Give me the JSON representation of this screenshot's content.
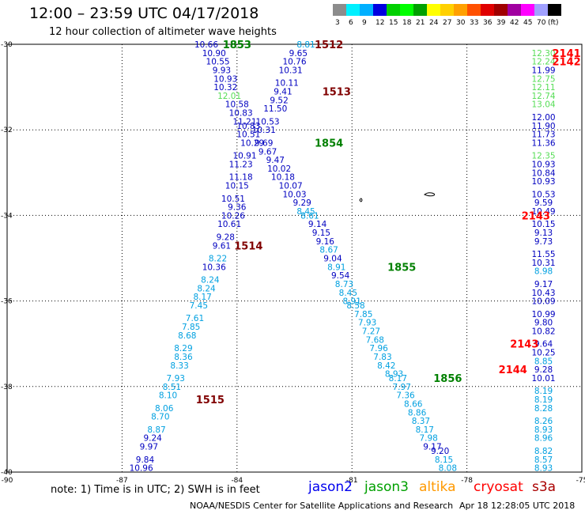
{
  "title": "12:00  –  23:59 UTC 04/17/2018",
  "subtitle": "12 hour collection of altimeter wave heights",
  "scale": {
    "colors": [
      "#8c8c8c",
      "#00f0ff",
      "#00b0ff",
      "#0000e0",
      "#00d000",
      "#00ff00",
      "#00a000",
      "#ffff00",
      "#ffd000",
      "#ffa000",
      "#ff5000",
      "#e00000",
      "#a00000",
      "#a000a0",
      "#ff00ff",
      "#a0a0ff",
      "#000000"
    ],
    "labels": [
      "3",
      "6",
      "9",
      "12",
      "15",
      "18",
      "21",
      "24",
      "27",
      "30",
      "33",
      "36",
      "39",
      "42",
      "45",
      "70",
      "(ft)"
    ]
  },
  "y_ticks": [
    "-30",
    "-32",
    "-34",
    "-36",
    "-38",
    "-40"
  ],
  "x_ticks": [
    "-90",
    "-87",
    "-84",
    "-81",
    "-78",
    "-75"
  ],
  "note": "note:  1) Time is in UTC;  2) SWH is in feet",
  "legend": [
    {
      "name": "jason2",
      "color": "#0000ee"
    },
    {
      "name": "jason3",
      "color": "#00a000"
    },
    {
      "name": "altika",
      "color": "#ff9900"
    },
    {
      "name": "cryosat",
      "color": "#ff0000"
    },
    {
      "name": "s3a",
      "color": "#aa0000"
    }
  ],
  "credit": "NOAA/NESDIS Center for Satellite Applications and Research",
  "timestamp": "Apr 18 12:28:05 UTC 2018",
  "colors": {
    "c6": "#00a0e0",
    "c9": "#0000c0",
    "c12": "#55dd55",
    "time_dark": "#800000",
    "time_green": "#008000",
    "time_red": "#ff0000"
  },
  "tracks": [
    {
      "time": "1853",
      "color": "time_green",
      "lon": -84.0,
      "lat": -30.0
    },
    {
      "time": "1512",
      "color": "time_dark",
      "lon": -81.6,
      "lat": -30.0
    },
    {
      "time": "1513",
      "color": "time_dark",
      "lon": -81.4,
      "lat": -31.1
    },
    {
      "time": "1854",
      "color": "time_green",
      "lon": -81.6,
      "lat": -32.3
    },
    {
      "time": "1514",
      "color": "time_dark",
      "lon": -83.7,
      "lat": -34.7
    },
    {
      "time": "1855",
      "color": "time_green",
      "lon": -79.7,
      "lat": -35.2
    },
    {
      "time": "1856",
      "color": "time_green",
      "lon": -78.5,
      "lat": -37.8
    },
    {
      "time": "1515",
      "color": "time_dark",
      "lon": -84.7,
      "lat": -38.3
    },
    {
      "time": "2141",
      "color": "time_red",
      "lon": -75.4,
      "lat": -30.2
    },
    {
      "time": "2142",
      "color": "time_red",
      "lon": -75.4,
      "lat": -30.4
    },
    {
      "time": "2143",
      "color": "time_red",
      "lon": -76.2,
      "lat": -34.0
    },
    {
      "time": "2143",
      "color": "time_red",
      "lon": -76.5,
      "lat": -37.0
    },
    {
      "time": "2144",
      "color": "time_red",
      "lon": -76.8,
      "lat": -37.6
    }
  ],
  "observations": [
    {
      "v": "10.66",
      "c": "c9",
      "lon": -84.8,
      "lat": -30.0
    },
    {
      "v": "10.90",
      "c": "c9",
      "lon": -84.6,
      "lat": -30.2
    },
    {
      "v": "10.55",
      "c": "c9",
      "lon": -84.5,
      "lat": -30.4
    },
    {
      "v": "9.93",
      "c": "c9",
      "lon": -84.4,
      "lat": -30.6
    },
    {
      "v": "10.93",
      "c": "c9",
      "lon": -84.3,
      "lat": -30.8
    },
    {
      "v": "10.32",
      "c": "c9",
      "lon": -84.3,
      "lat": -31.0
    },
    {
      "v": "12.01",
      "c": "c12",
      "lon": -84.2,
      "lat": -31.2
    },
    {
      "v": "10.58",
      "c": "c9",
      "lon": -84.0,
      "lat": -31.4
    },
    {
      "v": "10.83",
      "c": "c9",
      "lon": -83.9,
      "lat": -31.6
    },
    {
      "v": "11.21",
      "c": "c9",
      "lon": -83.8,
      "lat": -31.8
    },
    {
      "v": "10.83",
      "c": "c9",
      "lon": -83.7,
      "lat": -31.9
    },
    {
      "v": "10.51",
      "c": "c9",
      "lon": -83.7,
      "lat": -32.1
    },
    {
      "v": "10.29",
      "c": "c9",
      "lon": -83.6,
      "lat": -32.3
    },
    {
      "v": "10.91",
      "c": "c9",
      "lon": -83.8,
      "lat": -32.6
    },
    {
      "v": "11.23",
      "c": "c9",
      "lon": -83.9,
      "lat": -32.8
    },
    {
      "v": "11.18",
      "c": "c9",
      "lon": -83.9,
      "lat": -33.1
    },
    {
      "v": "10.15",
      "c": "c9",
      "lon": -84.0,
      "lat": -33.3
    },
    {
      "v": "10.51",
      "c": "c9",
      "lon": -84.1,
      "lat": -33.6
    },
    {
      "v": "9.36",
      "c": "c9",
      "lon": -84.0,
      "lat": -33.8
    },
    {
      "v": "10.26",
      "c": "c9",
      "lon": -84.1,
      "lat": -34.0
    },
    {
      "v": "10.61",
      "c": "c9",
      "lon": -84.2,
      "lat": -34.2
    },
    {
      "v": "9.28",
      "c": "c9",
      "lon": -84.3,
      "lat": -34.5
    },
    {
      "v": "9.61",
      "c": "c9",
      "lon": -84.4,
      "lat": -34.7
    },
    {
      "v": "8.22",
      "c": "c6",
      "lon": -84.5,
      "lat": -35.0
    },
    {
      "v": "10.36",
      "c": "c9",
      "lon": -84.6,
      "lat": -35.2
    },
    {
      "v": "8.24",
      "c": "c6",
      "lon": -84.7,
      "lat": -35.5
    },
    {
      "v": "8.24",
      "c": "c6",
      "lon": -84.8,
      "lat": -35.7
    },
    {
      "v": "8.17",
      "c": "c6",
      "lon": -84.9,
      "lat": -35.9
    },
    {
      "v": "7.45",
      "c": "c6",
      "lon": -85.0,
      "lat": -36.1
    },
    {
      "v": "7.61",
      "c": "c6",
      "lon": -85.1,
      "lat": -36.4
    },
    {
      "v": "7.85",
      "c": "c6",
      "lon": -85.2,
      "lat": -36.6
    },
    {
      "v": "8.68",
      "c": "c6",
      "lon": -85.3,
      "lat": -36.8
    },
    {
      "v": "8.29",
      "c": "c6",
      "lon": -85.4,
      "lat": -37.1
    },
    {
      "v": "8.36",
      "c": "c6",
      "lon": -85.4,
      "lat": -37.3
    },
    {
      "v": "8.33",
      "c": "c6",
      "lon": -85.5,
      "lat": -37.5
    },
    {
      "v": "7.93",
      "c": "c6",
      "lon": -85.6,
      "lat": -37.8
    },
    {
      "v": "8.51",
      "c": "c6",
      "lon": -85.7,
      "lat": -38.0
    },
    {
      "v": "8.10",
      "c": "c6",
      "lon": -85.8,
      "lat": -38.2
    },
    {
      "v": "8.06",
      "c": "c6",
      "lon": -85.9,
      "lat": -38.5
    },
    {
      "v": "8.70",
      "c": "c6",
      "lon": -86.0,
      "lat": -38.7
    },
    {
      "v": "8.87",
      "c": "c6",
      "lon": -86.1,
      "lat": -39.0
    },
    {
      "v": "9.24",
      "c": "c9",
      "lon": -86.2,
      "lat": -39.2
    },
    {
      "v": "9.97",
      "c": "c9",
      "lon": -86.3,
      "lat": -39.4
    },
    {
      "v": "9.84",
      "c": "c9",
      "lon": -86.4,
      "lat": -39.7
    },
    {
      "v": "10.96",
      "c": "c9",
      "lon": -86.5,
      "lat": -39.9
    },
    {
      "v": "8.81",
      "c": "c6",
      "lon": -82.2,
      "lat": -30.0
    },
    {
      "v": "9.65",
      "c": "c9",
      "lon": -82.4,
      "lat": -30.2
    },
    {
      "v": "10.76",
      "c": "c9",
      "lon": -82.5,
      "lat": -30.4
    },
    {
      "v": "10.31",
      "c": "c9",
      "lon": -82.6,
      "lat": -30.6
    },
    {
      "v": "10.11",
      "c": "c9",
      "lon": -82.7,
      "lat": -30.9
    },
    {
      "v": "9.41",
      "c": "c9",
      "lon": -82.8,
      "lat": -31.1
    },
    {
      "v": "9.52",
      "c": "c9",
      "lon": -82.9,
      "lat": -31.3
    },
    {
      "v": "11.50",
      "c": "c9",
      "lon": -83.0,
      "lat": -31.5
    },
    {
      "v": "10.53",
      "c": "c9",
      "lon": -83.2,
      "lat": -31.8
    },
    {
      "v": "10.31",
      "c": "c9",
      "lon": -83.3,
      "lat": -32.0
    },
    {
      "v": "9.69",
      "c": "c9",
      "lon": -83.3,
      "lat": -32.3
    },
    {
      "v": "9.67",
      "c": "c9",
      "lon": -83.2,
      "lat": -32.5
    },
    {
      "v": "9.47",
      "c": "c9",
      "lon": -83.0,
      "lat": -32.7
    },
    {
      "v": "10.02",
      "c": "c9",
      "lon": -82.9,
      "lat": -32.9
    },
    {
      "v": "10.18",
      "c": "c9",
      "lon": -82.8,
      "lat": -33.1
    },
    {
      "v": "10.07",
      "c": "c9",
      "lon": -82.6,
      "lat": -33.3
    },
    {
      "v": "10.03",
      "c": "c9",
      "lon": -82.5,
      "lat": -33.5
    },
    {
      "v": "9.29",
      "c": "c9",
      "lon": -82.3,
      "lat": -33.7
    },
    {
      "v": "8.45",
      "c": "c6",
      "lon": -82.2,
      "lat": -33.9
    },
    {
      "v": "8.61",
      "c": "c6",
      "lon": -82.1,
      "lat": -34.0
    },
    {
      "v": "9.14",
      "c": "c9",
      "lon": -81.9,
      "lat": -34.2
    },
    {
      "v": "9.15",
      "c": "c9",
      "lon": -81.8,
      "lat": -34.4
    },
    {
      "v": "9.16",
      "c": "c9",
      "lon": -81.7,
      "lat": -34.6
    },
    {
      "v": "8.67",
      "c": "c6",
      "lon": -81.6,
      "lat": -34.8
    },
    {
      "v": "9.04",
      "c": "c9",
      "lon": -81.5,
      "lat": -35.0
    },
    {
      "v": "8.91",
      "c": "c6",
      "lon": -81.4,
      "lat": -35.2
    },
    {
      "v": "9.54",
      "c": "c9",
      "lon": -81.3,
      "lat": -35.4
    },
    {
      "v": "8.73",
      "c": "c6",
      "lon": -81.2,
      "lat": -35.6
    },
    {
      "v": "8.45",
      "c": "c6",
      "lon": -81.1,
      "lat": -35.8
    },
    {
      "v": "8.91",
      "c": "c6",
      "lon": -81.0,
      "lat": -36.0
    },
    {
      "v": "8.58",
      "c": "c6",
      "lon": -80.9,
      "lat": -36.1
    },
    {
      "v": "7.85",
      "c": "c6",
      "lon": -80.7,
      "lat": -36.3
    },
    {
      "v": "7.93",
      "c": "c6",
      "lon": -80.6,
      "lat": -36.5
    },
    {
      "v": "7.27",
      "c": "c6",
      "lon": -80.5,
      "lat": -36.7
    },
    {
      "v": "7.68",
      "c": "c6",
      "lon": -80.4,
      "lat": -36.9
    },
    {
      "v": "7.96",
      "c": "c6",
      "lon": -80.3,
      "lat": -37.1
    },
    {
      "v": "7.83",
      "c": "c6",
      "lon": -80.2,
      "lat": -37.3
    },
    {
      "v": "8.42",
      "c": "c6",
      "lon": -80.1,
      "lat": -37.5
    },
    {
      "v": "8.93",
      "c": "c6",
      "lon": -79.9,
      "lat": -37.7
    },
    {
      "v": "8.17",
      "c": "c6",
      "lon": -79.8,
      "lat": -37.8
    },
    {
      "v": "7.97",
      "c": "c6",
      "lon": -79.7,
      "lat": -38.0
    },
    {
      "v": "7.36",
      "c": "c6",
      "lon": -79.6,
      "lat": -38.2
    },
    {
      "v": "8.66",
      "c": "c6",
      "lon": -79.4,
      "lat": -38.4
    },
    {
      "v": "8.86",
      "c": "c6",
      "lon": -79.3,
      "lat": -38.6
    },
    {
      "v": "8.37",
      "c": "c6",
      "lon": -79.2,
      "lat": -38.8
    },
    {
      "v": "8.17",
      "c": "c6",
      "lon": -79.1,
      "lat": -39.0
    },
    {
      "v": "7.98",
      "c": "c6",
      "lon": -79.0,
      "lat": -39.2
    },
    {
      "v": "9.17",
      "c": "c9",
      "lon": -78.9,
      "lat": -39.4
    },
    {
      "v": "9.20",
      "c": "c9",
      "lon": -78.7,
      "lat": -39.5
    },
    {
      "v": "8.15",
      "c": "c6",
      "lon": -78.6,
      "lat": -39.7
    },
    {
      "v": "8.08",
      "c": "c6",
      "lon": -78.5,
      "lat": -39.9
    },
    {
      "v": "12.30",
      "c": "c12",
      "lon": -76.0,
      "lat": -30.2
    },
    {
      "v": "12.24",
      "c": "c12",
      "lon": -76.0,
      "lat": -30.4
    },
    {
      "v": "11.99",
      "c": "c9",
      "lon": -76.0,
      "lat": -30.6
    },
    {
      "v": "12.75",
      "c": "c12",
      "lon": -76.0,
      "lat": -30.8
    },
    {
      "v": "12.11",
      "c": "c12",
      "lon": -76.0,
      "lat": -31.0
    },
    {
      "v": "12.74",
      "c": "c12",
      "lon": -76.0,
      "lat": -31.2
    },
    {
      "v": "13.04",
      "c": "c12",
      "lon": -76.0,
      "lat": -31.4
    },
    {
      "v": "12.00",
      "c": "c9",
      "lon": -76.0,
      "lat": -31.7
    },
    {
      "v": "11.90",
      "c": "c9",
      "lon": -76.0,
      "lat": -31.9
    },
    {
      "v": "11.73",
      "c": "c9",
      "lon": -76.0,
      "lat": -32.1
    },
    {
      "v": "11.36",
      "c": "c9",
      "lon": -76.0,
      "lat": -32.3
    },
    {
      "v": "12.35",
      "c": "c12",
      "lon": -76.0,
      "lat": -32.6
    },
    {
      "v": "10.93",
      "c": "c9",
      "lon": -76.0,
      "lat": -32.8
    },
    {
      "v": "10.84",
      "c": "c9",
      "lon": -76.0,
      "lat": -33.0
    },
    {
      "v": "10.93",
      "c": "c9",
      "lon": -76.0,
      "lat": -33.2
    },
    {
      "v": "10.53",
      "c": "c9",
      "lon": -76.0,
      "lat": -33.5
    },
    {
      "v": "9.59",
      "c": "c9",
      "lon": -76.0,
      "lat": -33.7
    },
    {
      "v": "10.49",
      "c": "c9",
      "lon": -76.0,
      "lat": -33.9
    },
    {
      "v": "10.15",
      "c": "c9",
      "lon": -76.0,
      "lat": -34.2
    },
    {
      "v": "9.13",
      "c": "c9",
      "lon": -76.0,
      "lat": -34.4
    },
    {
      "v": "9.73",
      "c": "c9",
      "lon": -76.0,
      "lat": -34.6
    },
    {
      "v": "11.55",
      "c": "c9",
      "lon": -76.0,
      "lat": -34.9
    },
    {
      "v": "10.31",
      "c": "c9",
      "lon": -76.0,
      "lat": -35.1
    },
    {
      "v": "8.98",
      "c": "c6",
      "lon": -76.0,
      "lat": -35.3
    },
    {
      "v": "9.17",
      "c": "c9",
      "lon": -76.0,
      "lat": -35.6
    },
    {
      "v": "10.43",
      "c": "c9",
      "lon": -76.0,
      "lat": -35.8
    },
    {
      "v": "10.09",
      "c": "c9",
      "lon": -76.0,
      "lat": -36.0
    },
    {
      "v": "10.99",
      "c": "c9",
      "lon": -76.0,
      "lat": -36.3
    },
    {
      "v": "9.80",
      "c": "c9",
      "lon": -76.0,
      "lat": -36.5
    },
    {
      "v": "10.82",
      "c": "c9",
      "lon": -76.0,
      "lat": -36.7
    },
    {
      "v": "9.64",
      "c": "c9",
      "lon": -76.0,
      "lat": -37.0
    },
    {
      "v": "10.25",
      "c": "c9",
      "lon": -76.0,
      "lat": -37.2
    },
    {
      "v": "8.85",
      "c": "c6",
      "lon": -76.0,
      "lat": -37.4
    },
    {
      "v": "9.28",
      "c": "c9",
      "lon": -76.0,
      "lat": -37.6
    },
    {
      "v": "10.01",
      "c": "c9",
      "lon": -76.0,
      "lat": -37.8
    },
    {
      "v": "8.19",
      "c": "c6",
      "lon": -76.0,
      "lat": -38.1
    },
    {
      "v": "8.19",
      "c": "c6",
      "lon": -76.0,
      "lat": -38.3
    },
    {
      "v": "8.28",
      "c": "c6",
      "lon": -76.0,
      "lat": -38.5
    },
    {
      "v": "8.26",
      "c": "c6",
      "lon": -76.0,
      "lat": -38.8
    },
    {
      "v": "8.93",
      "c": "c6",
      "lon": -76.0,
      "lat": -39.0
    },
    {
      "v": "8.96",
      "c": "c6",
      "lon": -76.0,
      "lat": -39.2
    },
    {
      "v": "8.82",
      "c": "c6",
      "lon": -76.0,
      "lat": -39.5
    },
    {
      "v": "8.57",
      "c": "c6",
      "lon": -76.0,
      "lat": -39.7
    },
    {
      "v": "8.93",
      "c": "c6",
      "lon": -76.0,
      "lat": -39.9
    }
  ]
}
